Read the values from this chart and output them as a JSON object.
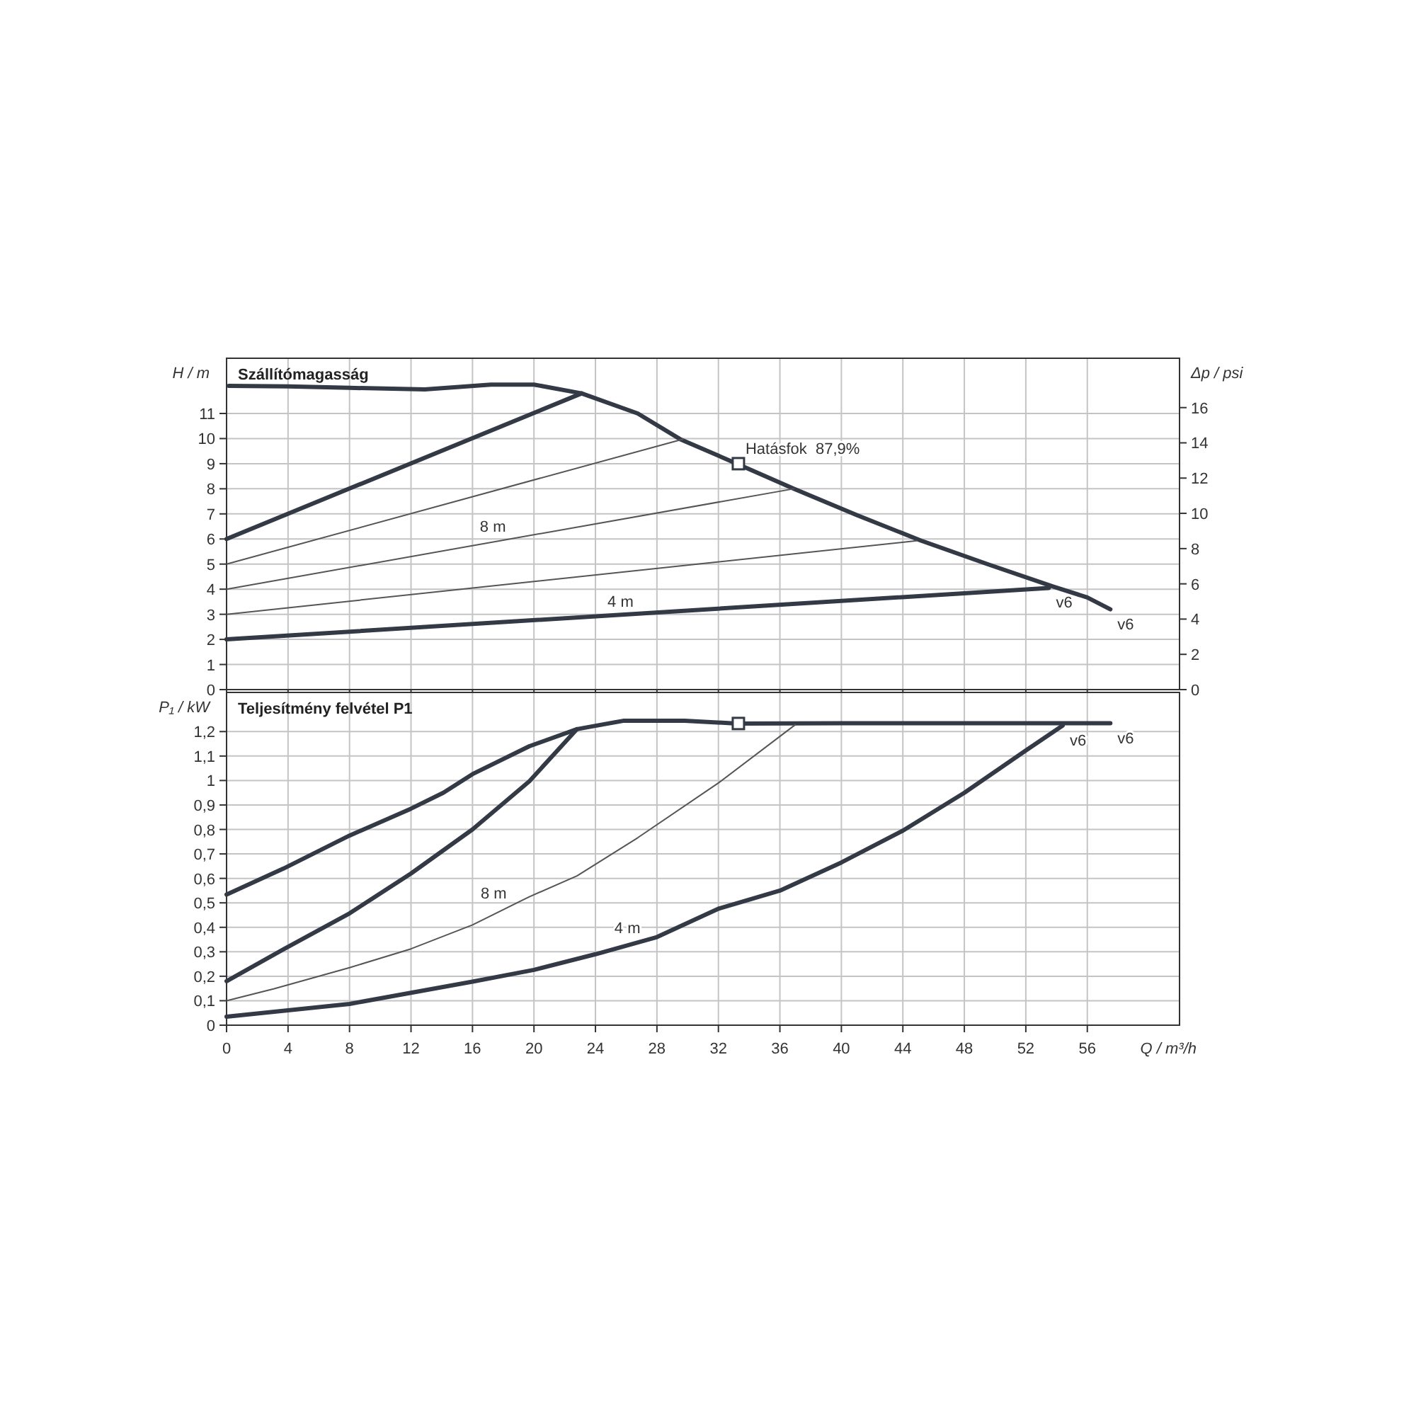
{
  "chart_data": [
    {
      "type": "line",
      "title": "Szállítómagasság",
      "ylabel": "H / m",
      "y2label": "Δp / psi",
      "xlim": [
        0,
        62
      ],
      "xticks": [
        0,
        4,
        8,
        12,
        16,
        20,
        24,
        28,
        32,
        36,
        40,
        44,
        48,
        52,
        56
      ],
      "ylim": [
        0,
        13.2
      ],
      "yticks": [
        0,
        1,
        2,
        3,
        4,
        5,
        6,
        7,
        8,
        9,
        10,
        11
      ],
      "y2lim": [
        0,
        18.8
      ],
      "y2ticks": [
        0,
        2,
        4,
        6,
        8,
        10,
        12,
        14,
        16
      ],
      "tick_labels": "y",
      "grid": true,
      "line_style": "solid",
      "marker": "none",
      "series": [
        {
          "color": "#333a45",
          "x": [
            0.15,
            4,
            8,
            12.9,
            17.2,
            20,
            23.1,
            26.75,
            29.5,
            33.2,
            36.9,
            41,
            45.2,
            49.5,
            53.8,
            56,
            57.5
          ],
          "values": [
            12.1,
            12.08,
            12.02,
            11.96,
            12.15,
            12.15,
            11.8,
            11.0,
            9.98,
            9.0,
            8.0,
            6.95,
            5.93,
            5.0,
            4.1,
            3.67,
            3.2
          ]
        },
        {
          "color": "#333a45",
          "x": [
            0,
            23.1
          ],
          "values": [
            6,
            11.8
          ]
        },
        {
          "color": "#555555",
          "x": [
            0,
            29.7
          ],
          "values": [
            5,
            9.98
          ]
        },
        {
          "name": "8 m",
          "color": "#555555",
          "x": [
            0,
            36.9
          ],
          "values": [
            4,
            8.0
          ]
        },
        {
          "color": "#555555",
          "x": [
            0,
            44.9
          ],
          "values": [
            3,
            5.93
          ]
        },
        {
          "name": "4 m",
          "color": "#333a45",
          "x": [
            0,
            53.5
          ],
          "values": [
            2,
            4.05
          ]
        },
        {
          "type": "scatter",
          "marker": "square",
          "color": "#333a45",
          "x": [
            33.3
          ],
          "values": [
            9.0
          ]
        }
      ],
      "annotations": [
        {
          "text": "Hatásfok  87,9%",
          "x": 33.3,
          "y": 9.0
        },
        {
          "text": "v6",
          "x": 53.5,
          "y": 4.05
        },
        {
          "text": "v6",
          "x": 57.5,
          "y": 3.2
        }
      ]
    },
    {
      "type": "line",
      "title": "Teljesítmény felvétel P1",
      "ylabel": "P₁ / kW",
      "xlabel": "Q / m³/h",
      "xlim": [
        0,
        62
      ],
      "xticks": [
        0,
        4,
        8,
        12,
        16,
        20,
        24,
        28,
        32,
        36,
        40,
        44,
        48,
        52,
        56
      ],
      "ylim": [
        0,
        1.36
      ],
      "yticks": [
        0,
        {
          "value": 0.1,
          "label": "0,1"
        },
        {
          "value": 0.2,
          "label": "0,2"
        },
        {
          "value": 0.3,
          "label": "0,3"
        },
        {
          "value": 0.4,
          "label": "0,4"
        },
        {
          "value": 0.5,
          "label": "0,5"
        },
        {
          "value": 0.6,
          "label": "0,6"
        },
        {
          "value": 0.7,
          "label": "0,7"
        },
        {
          "value": 0.8,
          "label": "0,8"
        },
        {
          "value": 0.9,
          "label": "0,9"
        },
        1,
        {
          "value": 1.1,
          "label": "1,1"
        },
        {
          "value": 1.2,
          "label": "1,2"
        }
      ],
      "grid": true,
      "line_style": "solid",
      "marker": "none",
      "series": [
        {
          "color": "#333a45",
          "x": [
            0,
            3.7,
            8,
            12,
            14.1,
            16,
            19.7,
            22.8,
            25.8,
            29.8,
            33.2,
            40,
            50,
            57.5
          ],
          "values": [
            0.534,
            0.64,
            0.775,
            0.885,
            0.95,
            1.026,
            1.14,
            1.21,
            1.244,
            1.244,
            1.233,
            1.234,
            1.234,
            1.234
          ]
        },
        {
          "color": "#333a45",
          "x": [
            0,
            3.7,
            8,
            12,
            16,
            19.7,
            22.8
          ],
          "values": [
            0.18,
            0.31,
            0.457,
            0.62,
            0.8,
            0.997,
            1.21
          ]
        },
        {
          "name": "8 m",
          "color": "#555555",
          "x": [
            0,
            3.1,
            8,
            12,
            16,
            19.7,
            22.8,
            26.75,
            32,
            37
          ],
          "values": [
            0.1,
            0.149,
            0.235,
            0.312,
            0.41,
            0.525,
            0.61,
            0.766,
            0.99,
            1.228
          ]
        },
        {
          "name": "4 m",
          "color": "#333a45",
          "x": [
            0,
            8,
            16,
            20,
            24,
            28,
            32,
            36,
            40,
            44,
            48,
            52,
            54.4
          ],
          "values": [
            0.035,
            0.087,
            0.178,
            0.226,
            0.29,
            0.36,
            0.476,
            0.55,
            0.665,
            0.795,
            0.95,
            1.123,
            1.225
          ]
        },
        {
          "type": "scatter",
          "marker": "square",
          "color": "#333a45",
          "x": [
            33.3
          ],
          "values": [
            1.233
          ]
        }
      ],
      "annotations": [
        {
          "text": "v6",
          "x": 54.4,
          "y": 1.225
        },
        {
          "text": "v6",
          "x": 57.5,
          "y": 1.234
        }
      ]
    }
  ]
}
